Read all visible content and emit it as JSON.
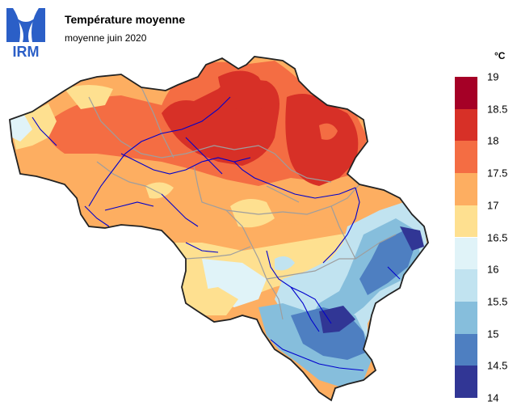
{
  "header": {
    "logo_text": "IRM",
    "title": "Température moyenne",
    "subtitle": "moyenne juin 2020"
  },
  "legend": {
    "unit": "°C",
    "ticks": [
      "19",
      "18.5",
      "18",
      "17.5",
      "17",
      "16.5",
      "16",
      "15.5",
      "15",
      "14.5",
      "14"
    ],
    "colors": [
      "#a50026",
      "#d73027",
      "#f46d43",
      "#fdae61",
      "#fee090",
      "#e0f3f8",
      "#c1e3f0",
      "#86bedc",
      "#4e7fc1",
      "#313695"
    ],
    "brand_color": "#2b5fc7"
  }
}
